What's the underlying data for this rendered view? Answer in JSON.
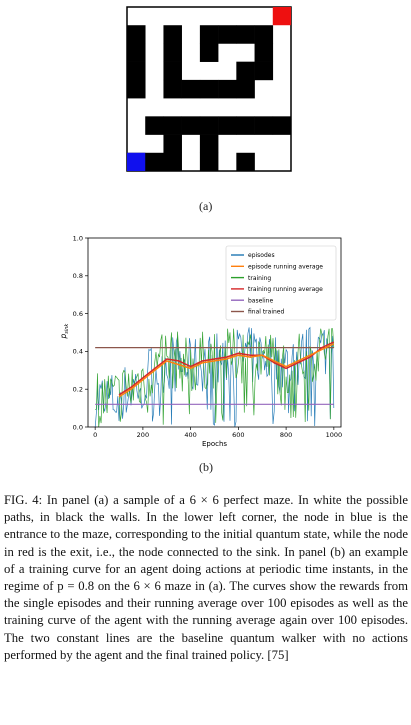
{
  "maze": {
    "label": "(a)",
    "cols": 9,
    "rows": 9,
    "walls": [
      [
        0,
        0,
        0,
        0,
        0,
        0,
        0,
        0,
        0
      ],
      [
        1,
        0,
        1,
        0,
        1,
        1,
        1,
        1,
        0
      ],
      [
        1,
        0,
        1,
        0,
        1,
        0,
        0,
        1,
        0
      ],
      [
        1,
        0,
        1,
        0,
        0,
        0,
        1,
        1,
        0
      ],
      [
        1,
        0,
        1,
        1,
        1,
        1,
        1,
        0,
        0
      ],
      [
        0,
        0,
        0,
        0,
        0,
        0,
        0,
        0,
        0
      ],
      [
        0,
        1,
        1,
        1,
        1,
        1,
        1,
        1,
        1
      ],
      [
        0,
        0,
        1,
        0,
        1,
        0,
        0,
        0,
        0
      ],
      [
        1,
        1,
        1,
        0,
        1,
        0,
        1,
        0,
        0
      ]
    ],
    "entrance": {
      "row": 8,
      "col": 0,
      "color": "#1010ee"
    },
    "exit": {
      "row": 0,
      "col": 8,
      "color": "#ee1010"
    }
  },
  "chart_label": "(b)",
  "chart_data": {
    "type": "line",
    "xlabel": "Epochs",
    "ylabel": "p",
    "ylabel_sub": "sink",
    "xlim": [
      -30,
      1030
    ],
    "ylim": [
      0.0,
      1.0
    ],
    "xticks": [
      0,
      200,
      400,
      600,
      800,
      1000
    ],
    "yticks": [
      "0.0",
      "0.2",
      "0.4",
      "0.6",
      "0.8",
      "1.0"
    ],
    "legend_position": "top-right",
    "series": [
      {
        "name": "episodes",
        "color": "#1f77b4"
      },
      {
        "name": "episode running average",
        "color": "#ff7f0e"
      },
      {
        "name": "training",
        "color": "#2ca02c"
      },
      {
        "name": "training running average",
        "color": "#d62728"
      },
      {
        "name": "baseline",
        "color": "#9467bd",
        "value": 0.12
      },
      {
        "name": "final trained",
        "color": "#8c564b",
        "value": 0.42
      }
    ],
    "episode_running_average": {
      "x": [
        100,
        150,
        200,
        250,
        300,
        350,
        400,
        450,
        500,
        550,
        600,
        650,
        700,
        750,
        800,
        850,
        900,
        950,
        1000
      ],
      "y": [
        0.16,
        0.2,
        0.25,
        0.3,
        0.35,
        0.33,
        0.31,
        0.34,
        0.35,
        0.36,
        0.38,
        0.37,
        0.38,
        0.35,
        0.32,
        0.35,
        0.38,
        0.41,
        0.44
      ]
    },
    "training_running_average": {
      "x": [
        100,
        150,
        200,
        250,
        300,
        350,
        400,
        450,
        500,
        550,
        600,
        650,
        700,
        750,
        800,
        850,
        900,
        950,
        1000
      ],
      "y": [
        0.17,
        0.21,
        0.26,
        0.31,
        0.36,
        0.35,
        0.32,
        0.35,
        0.36,
        0.37,
        0.39,
        0.38,
        0.38,
        0.34,
        0.31,
        0.34,
        0.37,
        0.42,
        0.45
      ]
    },
    "episode_noise": {
      "x_start": 0,
      "x_end": 1000,
      "step": 5,
      "min": 0.0,
      "max": 0.56
    },
    "training_noise": {
      "x_start": 0,
      "x_end": 1000,
      "step": 5,
      "min": 0.0,
      "max": 0.52
    }
  },
  "caption": "FIG. 4:   In panel (a) a sample of a 6 × 6 perfect maze. In white the possible paths, in black the walls. In the lower left corner, the node in blue is the entrance to the maze, corresponding to the initial quantum state, while the node in red is the exit, i.e., the node connected to the sink. In panel (b) an example of a training curve for an agent doing actions at periodic time instants, in the regime of p = 0.8 on the 6 × 6 maze in (a). The curves show the rewards from the single episodes and their running average over 100 episodes as well as the training curve of the agent with the running average again over 100 episodes. The two constant lines are the baseline quantum walker with no actions performed by the agent and the final trained policy. [75]"
}
